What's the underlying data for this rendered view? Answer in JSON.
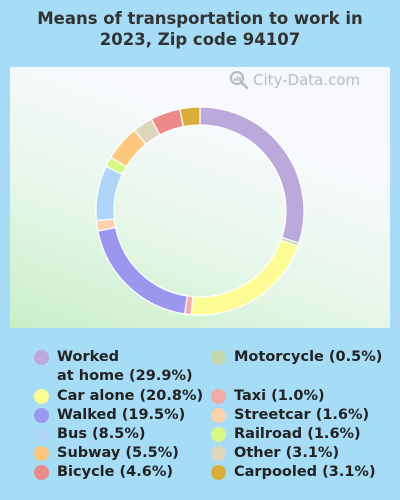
{
  "title_lines": [
    "Means of transportation to work in",
    "2023, Zip code 94107"
  ],
  "watermark": "City-Data.com",
  "colors": {
    "background": "#a6dcf6"
  },
  "chart_data": {
    "type": "pie",
    "donut": true,
    "title": "Means of transportation to work in 2023, Zip code 94107",
    "legend_placement": "bottom",
    "slices": [
      {
        "label": "Worked at home",
        "value": 29.9,
        "legend": "Worked\nat home (29.9%)",
        "color": "#bca9dc"
      },
      {
        "label": "Motorcycle",
        "value": 0.5,
        "legend": "Motorcycle (0.5%)",
        "color": "#c6d8ab"
      },
      {
        "label": "Car alone",
        "value": 20.8,
        "legend": "Car alone (20.8%)",
        "color": "#fdfb93"
      },
      {
        "label": "Taxi",
        "value": 1.0,
        "legend": "Taxi (1.0%)",
        "color": "#f4a9a9"
      },
      {
        "label": "Walked",
        "value": 19.5,
        "legend": "Walked (19.5%)",
        "color": "#9b97ef"
      },
      {
        "label": "Streetcar",
        "value": 1.6,
        "legend": "Streetcar (1.6%)",
        "color": "#fbd2ad"
      },
      {
        "label": "Bus",
        "value": 8.5,
        "legend": "Bus (8.5%)",
        "color": "#afd5f9"
      },
      {
        "label": "Railroad",
        "value": 1.6,
        "legend": "Railroad (1.6%)",
        "color": "#d5f982"
      },
      {
        "label": "Subway",
        "value": 5.5,
        "legend": "Subway (5.5%)",
        "color": "#fec77e"
      },
      {
        "label": "Other",
        "value": 3.1,
        "legend": "Other (3.1%)",
        "color": "#ddd6bd"
      },
      {
        "label": "Bicycle",
        "value": 4.6,
        "legend": "Bicycle (4.6%)",
        "color": "#ec8a8a"
      },
      {
        "label": "Carpooled",
        "value": 3.1,
        "legend": "Carpooled (3.1%)",
        "color": "#d8ae38"
      }
    ]
  }
}
